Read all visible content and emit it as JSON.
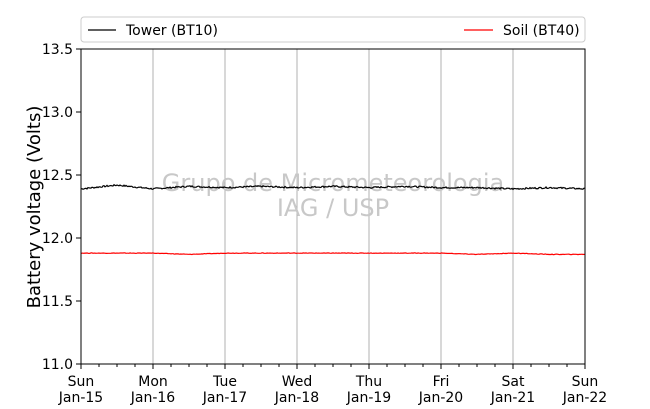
{
  "chart_data": {
    "type": "line",
    "ylabel": "Battery voltage (Volts)",
    "ylim": [
      11.0,
      13.5
    ],
    "yticks": [
      "11.0",
      "11.5",
      "12.0",
      "12.5",
      "13.0",
      "13.5"
    ],
    "xlim": [
      "2023-01-15",
      "2023-01-22"
    ],
    "xticks": [
      {
        "day": "Sun",
        "date": "Jan-15"
      },
      {
        "day": "Mon",
        "date": "Jan-16"
      },
      {
        "day": "Tue",
        "date": "Jan-17"
      },
      {
        "day": "Wed",
        "date": "Jan-18"
      },
      {
        "day": "Thu",
        "date": "Jan-19"
      },
      {
        "day": "Fri",
        "date": "Jan-20"
      },
      {
        "day": "Sat",
        "date": "Jan-21"
      },
      {
        "day": "Sun",
        "date": "Jan-22"
      }
    ],
    "grid": "vertical",
    "legend_placement": "top, above plot",
    "watermark": [
      "Grupo de Micrometeorologia",
      "IAG / USP"
    ],
    "series": [
      {
        "name": "Tower (BT10)",
        "color": "#000000",
        "x": [
          "2023-01-15",
          "2023-01-15 12:00",
          "2023-01-16",
          "2023-01-16 12:00",
          "2023-01-17",
          "2023-01-17 12:00",
          "2023-01-18",
          "2023-01-18 12:00",
          "2023-01-19",
          "2023-01-19 12:00",
          "2023-01-20",
          "2023-01-20 12:00",
          "2023-01-21",
          "2023-01-21 12:00",
          "2023-01-22"
        ],
        "values": [
          12.39,
          12.42,
          12.39,
          12.41,
          12.4,
          12.41,
          12.4,
          12.41,
          12.4,
          12.41,
          12.4,
          12.4,
          12.39,
          12.4,
          12.39
        ]
      },
      {
        "name": "Soil (BT40)",
        "color": "#ff0000",
        "x": [
          "2023-01-15",
          "2023-01-15 12:00",
          "2023-01-16",
          "2023-01-16 12:00",
          "2023-01-17",
          "2023-01-17 12:00",
          "2023-01-18",
          "2023-01-18 12:00",
          "2023-01-19",
          "2023-01-19 12:00",
          "2023-01-20",
          "2023-01-20 12:00",
          "2023-01-21",
          "2023-01-21 12:00",
          "2023-01-22"
        ],
        "values": [
          11.88,
          11.88,
          11.88,
          11.87,
          11.88,
          11.88,
          11.88,
          11.88,
          11.88,
          11.88,
          11.88,
          11.87,
          11.88,
          11.87,
          11.87
        ]
      }
    ]
  }
}
